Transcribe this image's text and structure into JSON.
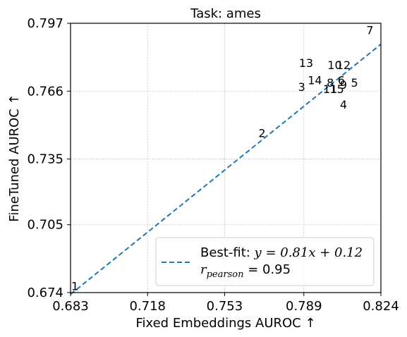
{
  "chart_data": {
    "type": "scatter",
    "title": "Task: ames",
    "xlabel": "Fixed Embeddings AUROC ↑",
    "ylabel": "FineTuned AUROC ↑",
    "xlim": [
      0.683,
      0.824
    ],
    "ylim": [
      0.674,
      0.797
    ],
    "x_ticks": [
      "0.683",
      "0.718",
      "0.753",
      "0.789",
      "0.824"
    ],
    "y_ticks": [
      "0.674",
      "0.705",
      "0.735",
      "0.766",
      "0.797"
    ],
    "grid": true,
    "grid_style": "dotted",
    "points": [
      {
        "label": "1",
        "x": 0.685,
        "y": 0.677
      },
      {
        "label": "2",
        "x": 0.77,
        "y": 0.747
      },
      {
        "label": "3",
        "x": 0.788,
        "y": 0.768
      },
      {
        "label": "4",
        "x": 0.807,
        "y": 0.76
      },
      {
        "label": "5",
        "x": 0.812,
        "y": 0.77
      },
      {
        "label": "6",
        "x": 0.806,
        "y": 0.771
      },
      {
        "label": "7",
        "x": 0.819,
        "y": 0.794
      },
      {
        "label": "8",
        "x": 0.801,
        "y": 0.77
      },
      {
        "label": "9",
        "x": 0.807,
        "y": 0.769
      },
      {
        "label": "10",
        "x": 0.803,
        "y": 0.778
      },
      {
        "label": "11",
        "x": 0.801,
        "y": 0.767
      },
      {
        "label": "12",
        "x": 0.807,
        "y": 0.778
      },
      {
        "label": "13",
        "x": 0.79,
        "y": 0.779
      },
      {
        "label": "14",
        "x": 0.794,
        "y": 0.771
      },
      {
        "label": "15",
        "x": 0.804,
        "y": 0.767
      }
    ],
    "fit_line": {
      "slope": 0.81,
      "intercept": 0.12,
      "color": "#1f77b4",
      "style": "dashed",
      "legend_line1_prefix": "Best-fit: ",
      "legend_line1_math": "y = 0.81x + 0.12",
      "legend_line2_symbol": "r",
      "legend_line2_subscript": "pearson",
      "legend_line2_value": " = 0.95"
    },
    "legend_placement": "lower-right"
  }
}
